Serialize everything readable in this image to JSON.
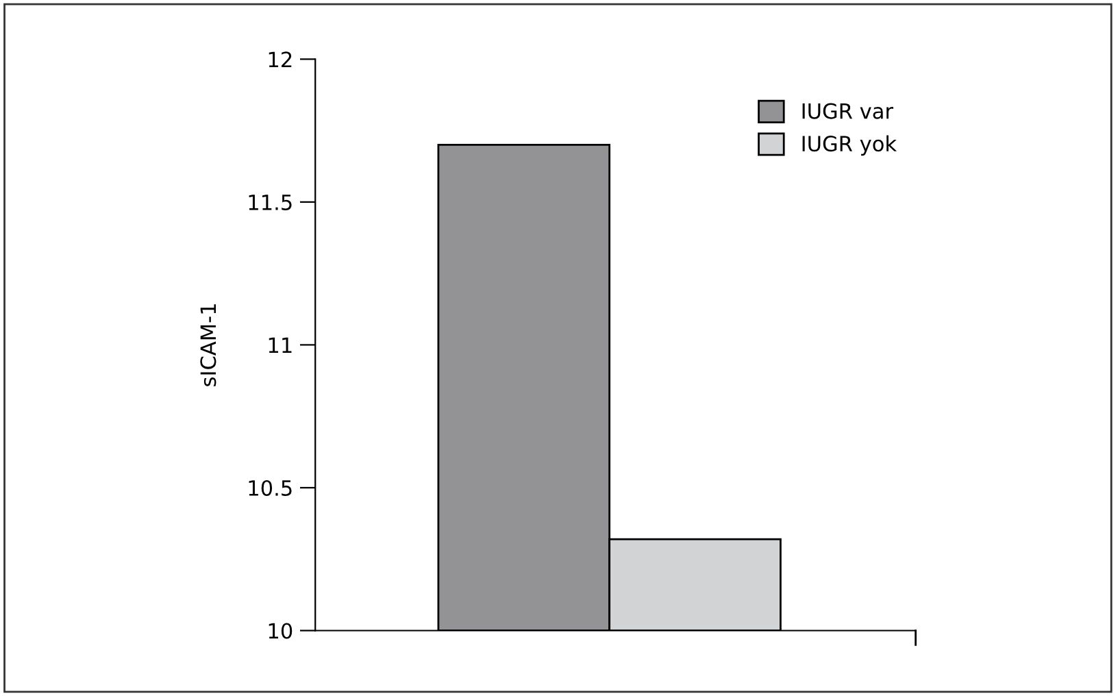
{
  "chart_data": {
    "type": "bar",
    "ylabel": "sICAM-1",
    "categories": [
      null
    ],
    "series": [
      {
        "name": "IUGR var",
        "color": "#939396",
        "values": [
          11.7
        ]
      },
      {
        "name": "IUGR yok",
        "color": "#d2d3d5",
        "values": [
          10.32
        ]
      }
    ],
    "ylim": [
      10,
      12
    ],
    "yticks": [
      10,
      10.5,
      11,
      11.5,
      12
    ],
    "grid": false,
    "legend": "top right",
    "tick_labels": "y"
  }
}
